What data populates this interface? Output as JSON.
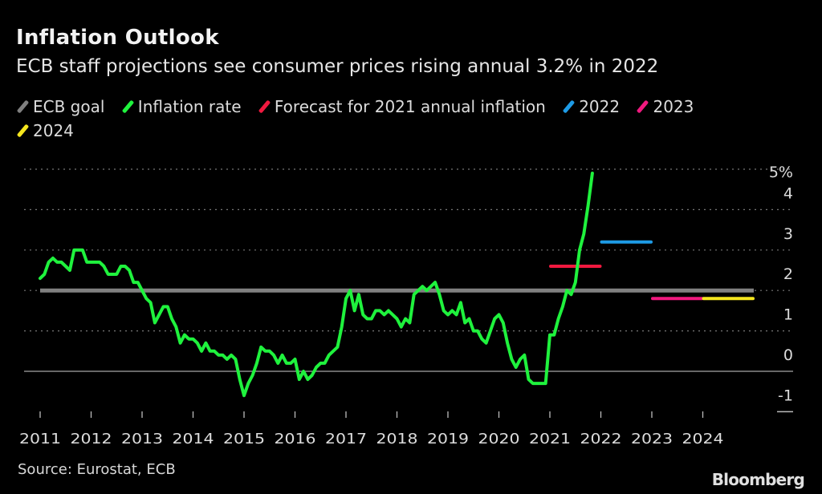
{
  "header": {
    "title": "Inflation Outlook",
    "subtitle": "ECB staff projections see consumer prices rising annual 3.2% in 2022"
  },
  "footer": {
    "source": "Source: Eurostat, ECB",
    "logo": "Bloomberg"
  },
  "chart_data": {
    "type": "line",
    "title": "Inflation Outlook",
    "subtitle": "ECB staff projections see consumer prices rising annual 3.2% in 2022",
    "ylim": [
      -1,
      5
    ],
    "y_ticks": [
      "5%",
      "4",
      "3",
      "2",
      "1",
      "0",
      "-1"
    ],
    "y_tick_values": [
      5,
      4,
      3,
      2,
      1,
      0,
      -1
    ],
    "x_ticks": [
      "2011",
      "2012",
      "2013",
      "2014",
      "2015",
      "2016",
      "2017",
      "2018",
      "2019",
      "2020",
      "2021",
      "2022",
      "2023",
      "2024"
    ],
    "grid": true,
    "legend_position": "top",
    "legend": [
      {
        "label": "ECB goal",
        "color": "#808080"
      },
      {
        "label": "Inflation rate",
        "color": "#1ff23d"
      },
      {
        "label": "Forecast for 2021 annual inflation",
        "color": "#f0193f"
      },
      {
        "label": "2022",
        "color": "#1e9be6"
      },
      {
        "label": "2023",
        "color": "#f0197f"
      },
      {
        "label": "2024",
        "color": "#f5e61e"
      }
    ],
    "ecb_goal": {
      "value": 2,
      "x_start": "2011-01",
      "x_end": "2025-01"
    },
    "inflation_rate": {
      "start": "2011-01",
      "frequency": "monthly",
      "values": [
        2.3,
        2.4,
        2.7,
        2.8,
        2.7,
        2.7,
        2.6,
        2.5,
        3.0,
        3.0,
        3.0,
        2.7,
        2.7,
        2.7,
        2.7,
        2.6,
        2.4,
        2.4,
        2.4,
        2.6,
        2.6,
        2.5,
        2.2,
        2.2,
        2.0,
        1.8,
        1.7,
        1.2,
        1.4,
        1.6,
        1.6,
        1.3,
        1.1,
        0.7,
        0.9,
        0.8,
        0.8,
        0.7,
        0.5,
        0.7,
        0.5,
        0.5,
        0.4,
        0.4,
        0.3,
        0.4,
        0.3,
        -0.2,
        -0.6,
        -0.3,
        -0.1,
        0.2,
        0.6,
        0.5,
        0.5,
        0.4,
        0.2,
        0.4,
        0.2,
        0.2,
        0.3,
        -0.2,
        0.0,
        -0.2,
        -0.1,
        0.1,
        0.2,
        0.2,
        0.4,
        0.5,
        0.6,
        1.1,
        1.8,
        2.0,
        1.5,
        1.9,
        1.4,
        1.3,
        1.3,
        1.5,
        1.5,
        1.4,
        1.5,
        1.4,
        1.3,
        1.1,
        1.3,
        1.2,
        1.9,
        2.0,
        2.1,
        2.0,
        2.1,
        2.2,
        1.9,
        1.5,
        1.4,
        1.5,
        1.4,
        1.7,
        1.2,
        1.3,
        1.0,
        1.0,
        0.8,
        0.7,
        1.0,
        1.3,
        1.4,
        1.2,
        0.7,
        0.3,
        0.1,
        0.3,
        0.4,
        -0.2,
        -0.3,
        -0.3,
        -0.3,
        -0.3,
        0.9,
        0.9,
        1.3,
        1.6,
        2.0,
        1.9,
        2.2,
        3.0,
        3.4,
        4.1,
        4.9
      ]
    },
    "forecasts": [
      {
        "label": "Forecast for 2021 annual inflation",
        "year": 2021,
        "value": 2.6
      },
      {
        "label": "2022",
        "year": 2022,
        "value": 3.2
      },
      {
        "label": "2023",
        "year": 2023,
        "value": 1.8
      },
      {
        "label": "2024",
        "year": 2024,
        "value": 1.8
      }
    ]
  }
}
